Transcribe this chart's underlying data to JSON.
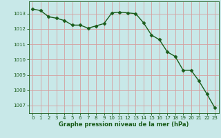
{
  "x": [
    0,
    1,
    2,
    3,
    4,
    5,
    6,
    7,
    8,
    9,
    10,
    11,
    12,
    13,
    14,
    15,
    16,
    17,
    18,
    19,
    20,
    21,
    22,
    23
  ],
  "y": [
    1013.3,
    1013.2,
    1012.8,
    1012.7,
    1012.55,
    1012.25,
    1012.25,
    1012.05,
    1012.2,
    1012.35,
    1013.05,
    1013.1,
    1013.05,
    1013.0,
    1012.4,
    1011.6,
    1011.3,
    1010.5,
    1010.2,
    1009.3,
    1009.3,
    1008.6,
    1007.75,
    1006.85
  ],
  "line_color": "#1a5c1a",
  "marker": "D",
  "marker_size": 2.5,
  "bg_color": "#c8e8e8",
  "plot_bg": "#c8e8e8",
  "grid_color_h": "#d4a0a0",
  "grid_color_v": "#d4a0a0",
  "xlabel": "Graphe pression niveau de la mer (hPa)",
  "xlabel_color": "#1a5c1a",
  "tick_color": "#1a5c1a",
  "ylim": [
    1006.5,
    1013.8
  ],
  "xlim": [
    -0.5,
    23.5
  ],
  "yticks": [
    1007,
    1008,
    1009,
    1010,
    1011,
    1012,
    1013
  ],
  "xticks": [
    0,
    1,
    2,
    3,
    4,
    5,
    6,
    7,
    8,
    9,
    10,
    11,
    12,
    13,
    14,
    15,
    16,
    17,
    18,
    19,
    20,
    21,
    22,
    23
  ],
  "linewidth": 1.0,
  "xlabel_fontsize": 6.0,
  "tick_fontsize": 5.0,
  "xlabel_fontweight": "bold"
}
